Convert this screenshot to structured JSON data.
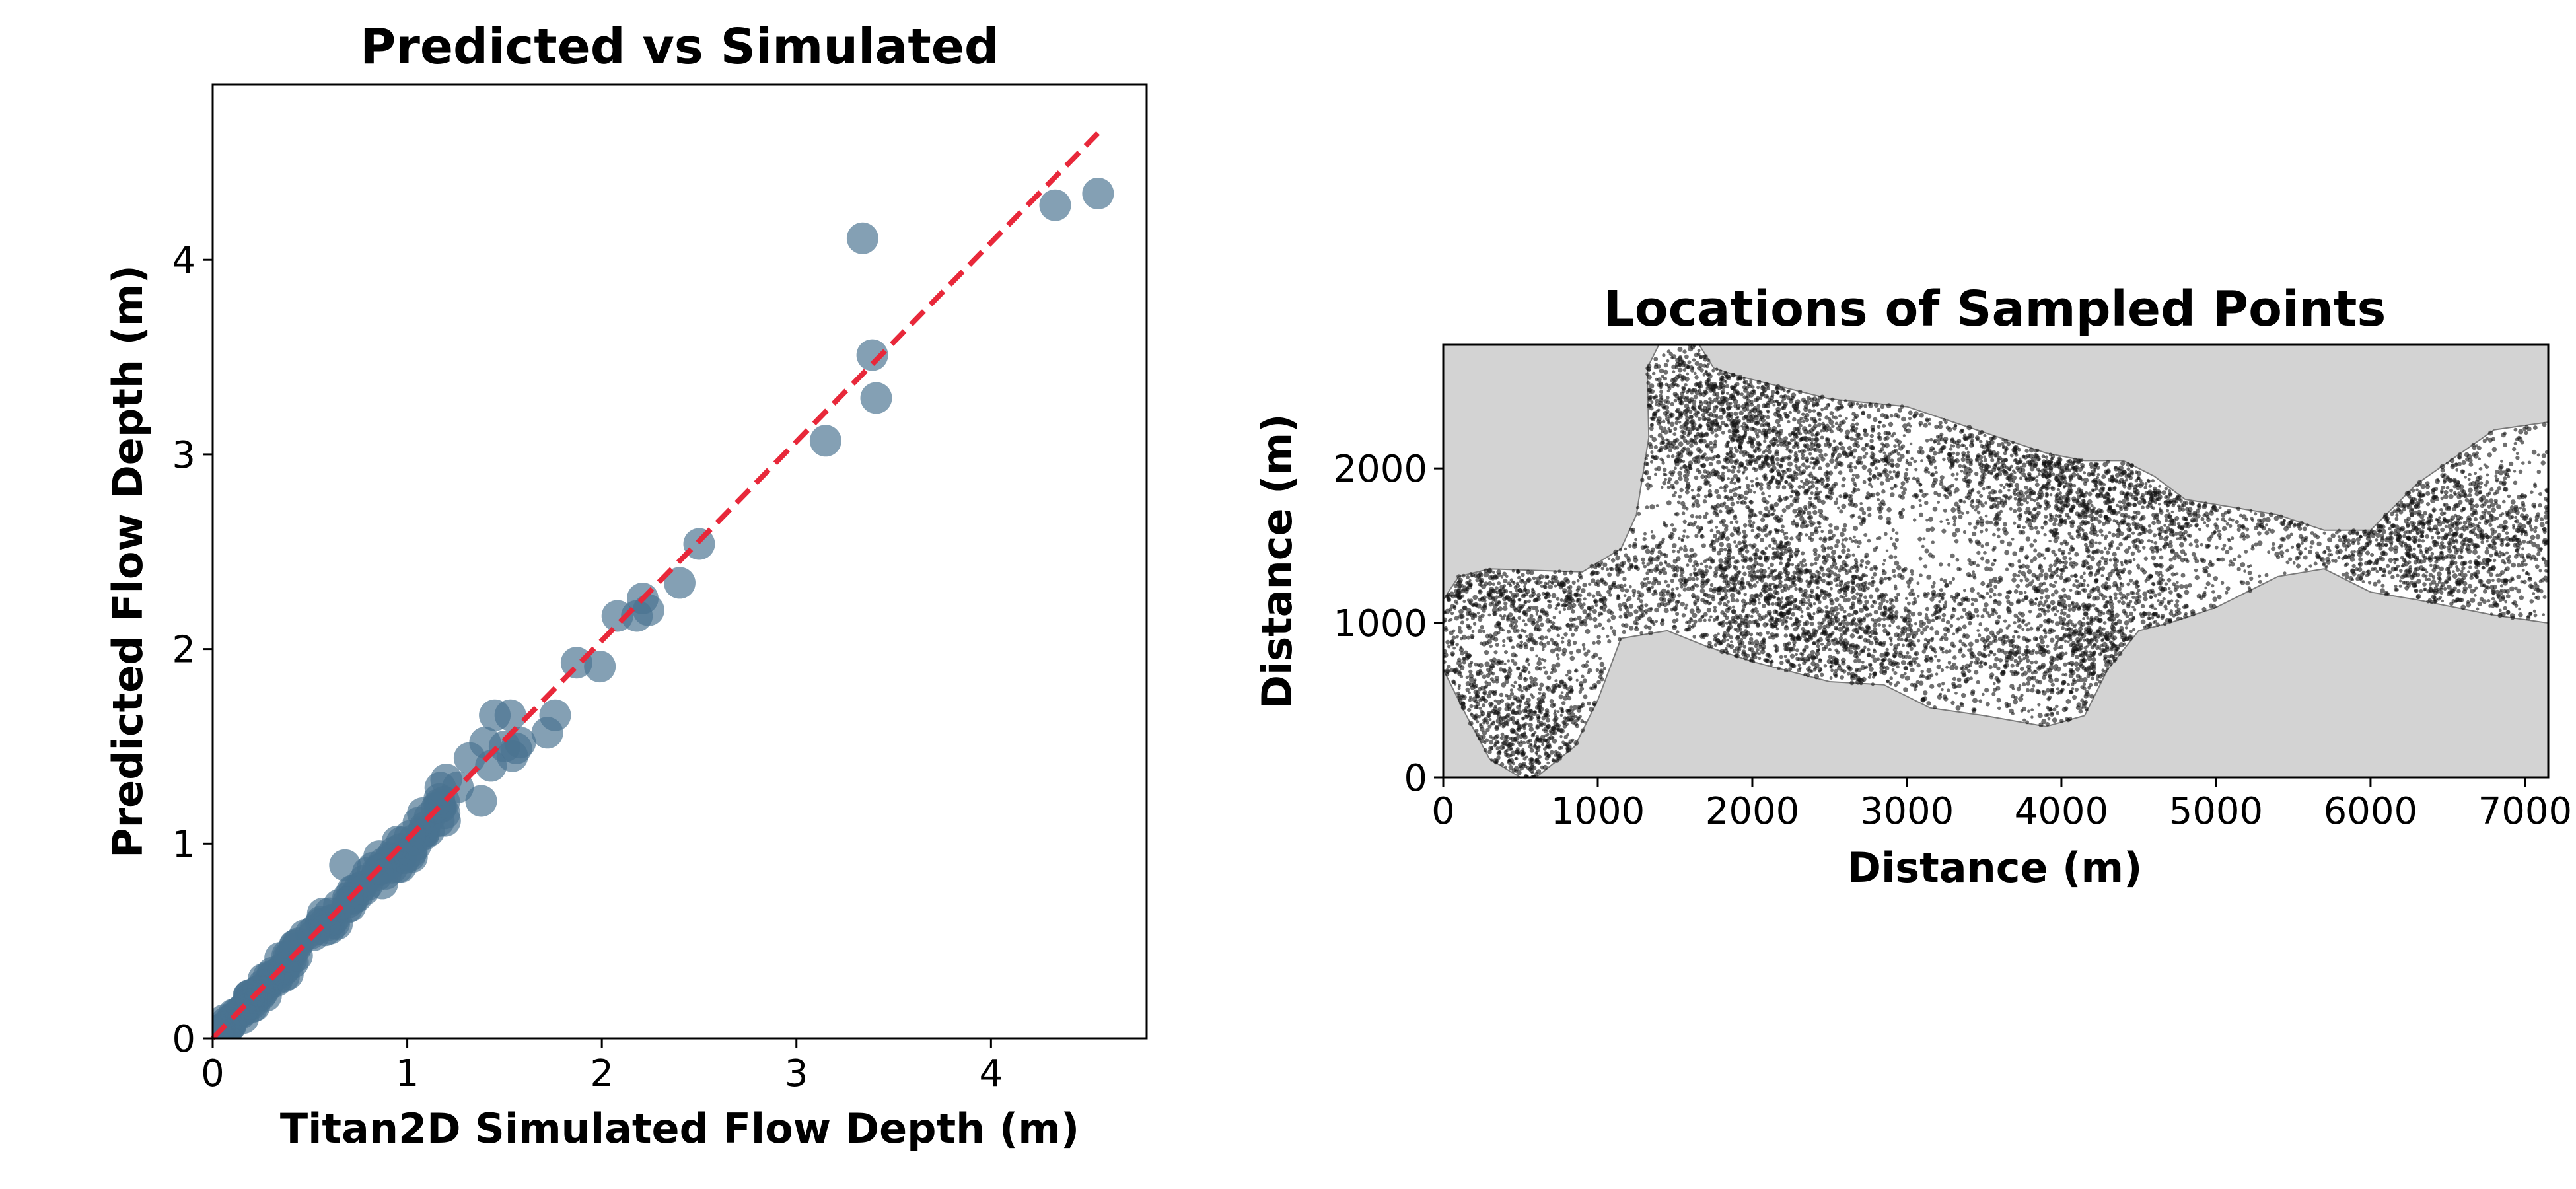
{
  "chart_data": [
    {
      "type": "scatter",
      "title": "Predicted vs Simulated",
      "xlabel": "Titan2D Simulated Flow Depth (m)",
      "ylabel": "Predicted Flow Depth (m)",
      "xlim": [
        0,
        4.8
      ],
      "ylim": [
        0,
        4.9
      ],
      "xticks": [
        0,
        1,
        2,
        3,
        4
      ],
      "yticks": [
        0,
        1,
        2,
        3,
        4
      ],
      "xtick_labels": [
        "0",
        "1",
        "2",
        "3",
        "4"
      ],
      "ytick_labels": [
        "0",
        "1",
        "2",
        "3",
        "4"
      ],
      "grid": false,
      "point_color": "#4a7391",
      "line_color": "#e8283a",
      "reference_line": {
        "from": [
          0,
          0
        ],
        "to": [
          4.55,
          4.65
        ],
        "style": "dashed"
      },
      "outliers": [
        [
          3.34,
          4.11
        ],
        [
          4.33,
          4.28
        ],
        [
          4.55,
          4.34
        ],
        [
          3.39,
          3.51
        ],
        [
          3.41,
          3.29
        ],
        [
          3.15,
          3.07
        ],
        [
          2.5,
          2.54
        ],
        [
          2.4,
          2.34
        ],
        [
          2.21,
          2.26
        ],
        [
          2.24,
          2.2
        ],
        [
          2.08,
          2.17
        ],
        [
          2.18,
          2.17
        ],
        [
          1.99,
          1.91
        ],
        [
          1.87,
          1.93
        ],
        [
          1.76,
          1.66
        ],
        [
          1.72,
          1.57
        ],
        [
          1.45,
          1.66
        ],
        [
          1.53,
          1.66
        ],
        [
          1.56,
          1.49
        ],
        [
          1.54,
          1.45
        ],
        [
          1.58,
          1.52
        ],
        [
          1.5,
          1.5
        ],
        [
          1.4,
          1.52
        ],
        [
          1.43,
          1.4
        ],
        [
          1.38,
          1.22
        ],
        [
          1.32,
          1.44
        ],
        [
          1.26,
          1.29
        ],
        [
          1.2,
          1.33
        ],
        [
          0.68,
          0.89
        ]
      ],
      "cluster": {
        "x_range": [
          0,
          1.2
        ],
        "count": 160,
        "spread": 0.04
      }
    },
    {
      "type": "scatter",
      "title": "Locations of Sampled Points",
      "xlabel": "Distance (m)",
      "ylabel": "Distance (m)",
      "xlim": [
        0,
        7150
      ],
      "ylim": [
        0,
        2800
      ],
      "xticks": [
        0,
        1000,
        2000,
        3000,
        4000,
        5000,
        6000,
        7000
      ],
      "yticks": [
        0,
        1000,
        2000
      ],
      "xtick_labels": [
        "0",
        "1000",
        "2000",
        "3000",
        "4000",
        "5000",
        "6000",
        "7000"
      ],
      "ytick_labels": [
        "0",
        "1000",
        "2000"
      ],
      "background_color": "#d3d3d3",
      "point_color": "#111111",
      "sample_point_count": 9000,
      "region_outline": [
        [
          0,
          1150
        ],
        [
          100,
          1300
        ],
        [
          300,
          1350
        ],
        [
          900,
          1330
        ],
        [
          1150,
          1480
        ],
        [
          1250,
          1700
        ],
        [
          1330,
          2200
        ],
        [
          1320,
          2650
        ],
        [
          1400,
          2810
        ],
        [
          1650,
          2810
        ],
        [
          1750,
          2650
        ],
        [
          1900,
          2600
        ],
        [
          2300,
          2500
        ],
        [
          2500,
          2450
        ],
        [
          3000,
          2400
        ],
        [
          3300,
          2300
        ],
        [
          3900,
          2100
        ],
        [
          4150,
          2050
        ],
        [
          4400,
          2050
        ],
        [
          4600,
          1950
        ],
        [
          4800,
          1800
        ],
        [
          5100,
          1750
        ],
        [
          5400,
          1700
        ],
        [
          5700,
          1600
        ],
        [
          6000,
          1600
        ],
        [
          6300,
          1900
        ],
        [
          6800,
          2250
        ],
        [
          7150,
          2300
        ],
        [
          7150,
          1000
        ],
        [
          6800,
          1050
        ],
        [
          6300,
          1150
        ],
        [
          6000,
          1200
        ],
        [
          5700,
          1350
        ],
        [
          5400,
          1300
        ],
        [
          5000,
          1100
        ],
        [
          4700,
          1000
        ],
        [
          4500,
          950
        ],
        [
          4300,
          700
        ],
        [
          4150,
          400
        ],
        [
          3900,
          330
        ],
        [
          3500,
          400
        ],
        [
          3150,
          450
        ],
        [
          2850,
          600
        ],
        [
          2500,
          620
        ],
        [
          2000,
          750
        ],
        [
          1700,
          850
        ],
        [
          1450,
          950
        ],
        [
          1150,
          900
        ],
        [
          1000,
          500
        ],
        [
          850,
          200
        ],
        [
          600,
          0
        ],
        [
          500,
          0
        ],
        [
          300,
          120
        ],
        [
          150,
          400
        ],
        [
          0,
          700
        ]
      ]
    }
  ]
}
